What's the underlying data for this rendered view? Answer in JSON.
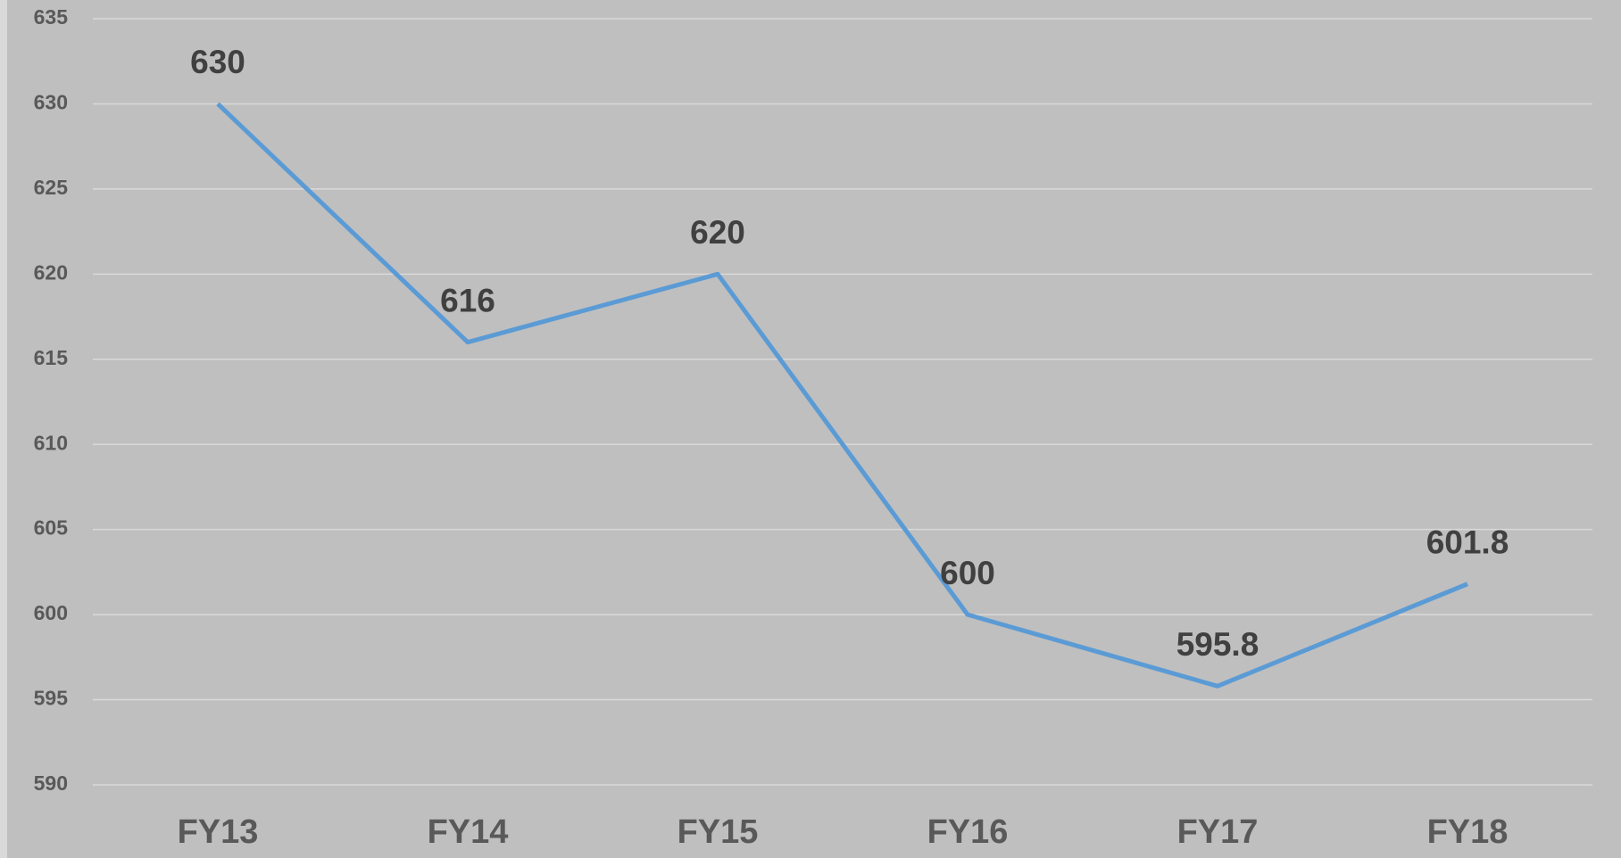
{
  "chart_data": {
    "type": "line",
    "categories": [
      "FY13",
      "FY14",
      "FY15",
      "FY16",
      "FY17",
      "FY18"
    ],
    "series": [
      {
        "color": "#5b9bd5",
        "values": [
          630,
          616,
          620,
          600,
          595.8,
          601.8
        ]
      }
    ],
    "ylim": [
      590,
      635
    ],
    "yticks": [
      590,
      595,
      600,
      605,
      610,
      615,
      620,
      625,
      630,
      635
    ],
    "grid": true,
    "data_labels": true
  }
}
